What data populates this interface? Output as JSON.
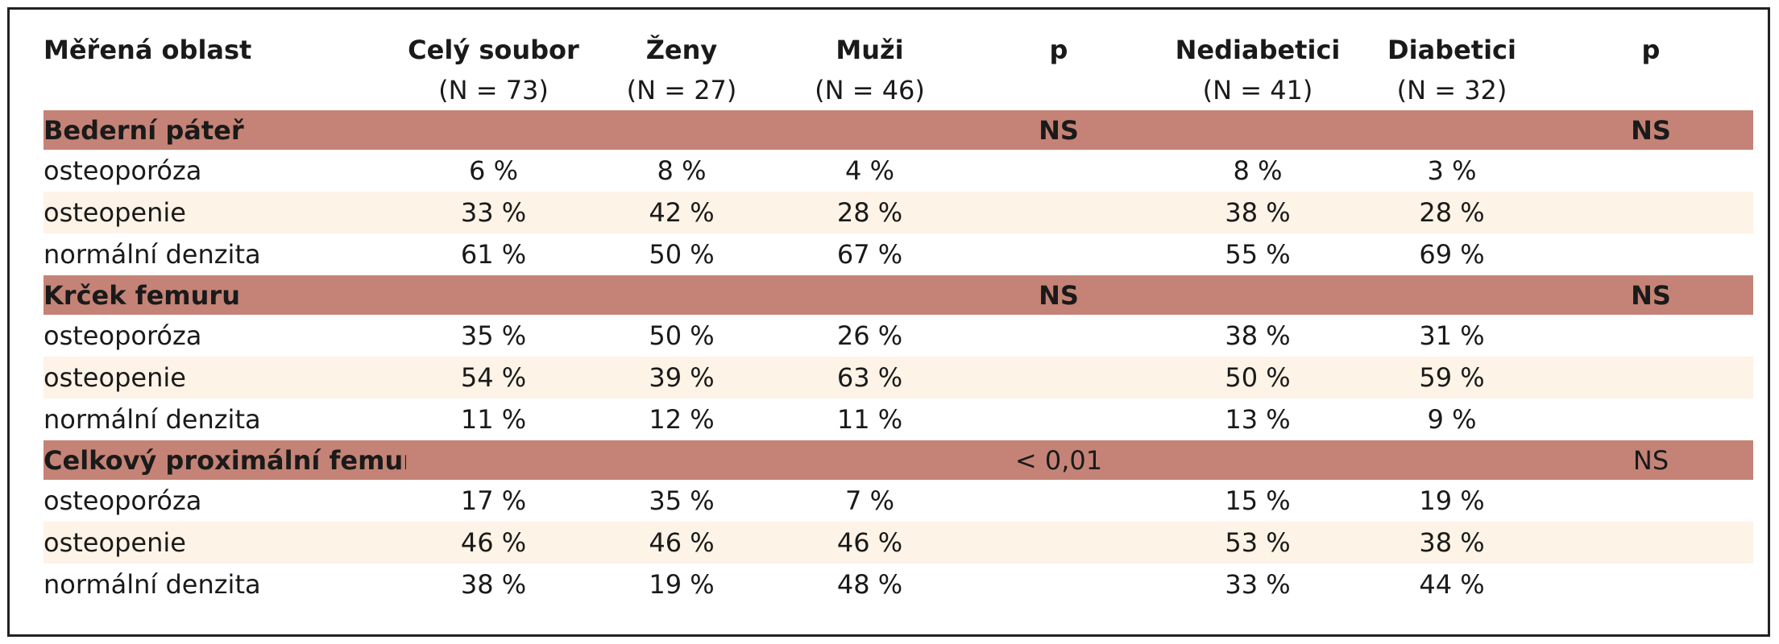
{
  "header": {
    "area": "Měřená oblast",
    "columns": [
      {
        "label": "Celý soubor",
        "n": "(N = 73)"
      },
      {
        "label": "Ženy",
        "n": "(N = 27)"
      },
      {
        "label": "Muži",
        "n": "(N = 46)"
      },
      {
        "label": "p",
        "n": ""
      },
      {
        "label": "Nediabetici",
        "n": "(N = 41)"
      },
      {
        "label": "Diabetici",
        "n": "(N = 32)"
      },
      {
        "label": "p",
        "n": ""
      }
    ]
  },
  "sections": [
    {
      "title": "Bederní páteř",
      "p_sex": "NS",
      "p_diabetes": "NS",
      "rows": [
        {
          "label": "osteoporóza",
          "values": [
            "6 %",
            "8 %",
            "4 %",
            "8 %",
            "3 %"
          ]
        },
        {
          "label": "osteopenie",
          "values": [
            "33 %",
            "42 %",
            "28 %",
            "38 %",
            "28 %"
          ]
        },
        {
          "label": "normální denzita",
          "values": [
            "61 %",
            "50 %",
            "67 %",
            "55 %",
            "69 %"
          ]
        }
      ]
    },
    {
      "title": "Krček femuru",
      "p_sex": "NS",
      "p_diabetes": "NS",
      "rows": [
        {
          "label": "osteoporóza",
          "values": [
            "35 %",
            "50 %",
            "26 %",
            "38 %",
            "31 %"
          ]
        },
        {
          "label": "osteopenie",
          "values": [
            "54 %",
            "39 %",
            "63 %",
            "50 %",
            "59 %"
          ]
        },
        {
          "label": "normální denzita",
          "values": [
            "11 %",
            "12 %",
            "11 %",
            "13 %",
            "9 %"
          ]
        }
      ]
    },
    {
      "title": "Celkový proximální femur",
      "p_sex": "< 0,01",
      "p_diabetes": "NS",
      "rows": [
        {
          "label": "osteoporóza",
          "values": [
            "17 %",
            "35 %",
            "7 %",
            "15 %",
            "19 %"
          ]
        },
        {
          "label": "osteopenie",
          "values": [
            "46 %",
            "46 %",
            "46 %",
            "53 %",
            "38 %"
          ]
        },
        {
          "label": "normální denzita",
          "values": [
            "38 %",
            "19 %",
            "48 %",
            "33 %",
            "44 %"
          ]
        }
      ]
    }
  ],
  "colors": {
    "section_band": "#c48376",
    "alt_row": "#fdf3e6",
    "border": "#222222"
  }
}
